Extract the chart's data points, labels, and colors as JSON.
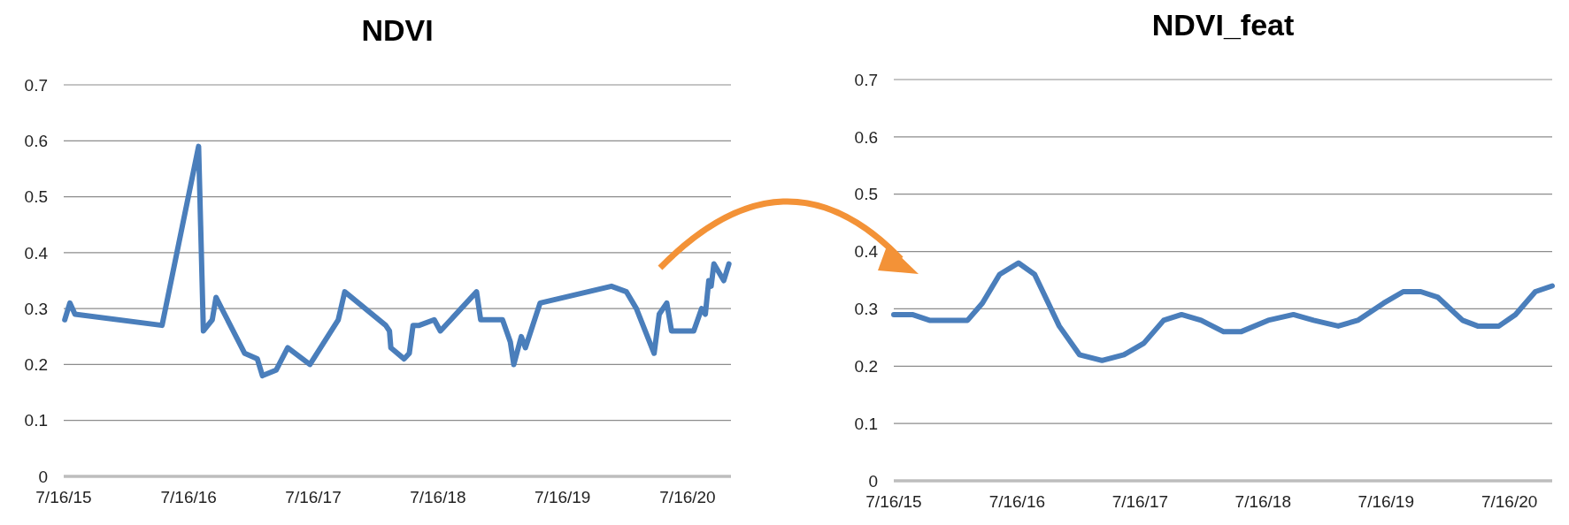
{
  "chart_data": [
    {
      "type": "line",
      "title": "NDVI",
      "grid": "y",
      "marker": "none",
      "line_style": "solid",
      "xlim": [
        "2015-07-16",
        "2020-11-20"
      ],
      "xticks": [
        {
          "value": "2015-07-16",
          "label": "7/16/15"
        },
        {
          "value": "2016-07-16",
          "label": "7/16/16"
        },
        {
          "value": "2017-07-16",
          "label": "7/16/17"
        },
        {
          "value": "2018-07-16",
          "label": "7/16/18"
        },
        {
          "value": "2019-07-16",
          "label": "7/16/19"
        },
        {
          "value": "2020-07-16",
          "label": "7/16/20"
        }
      ],
      "ylim": [
        0,
        0.7
      ],
      "yticks": [
        0,
        0.1,
        0.2,
        0.3,
        0.4,
        0.5,
        0.6,
        0.7
      ],
      "series": [
        {
          "color": "#4a7ebb",
          "x": [
            "2015-07-19",
            "2015-08-03",
            "2015-08-18",
            "2016-04-29",
            "2016-08-14",
            "2016-08-28",
            "2016-09-23",
            "2016-10-04",
            "2016-12-27",
            "2017-02-02",
            "2017-02-17",
            "2017-03-29",
            "2017-05-02",
            "2017-07-06",
            "2017-09-27",
            "2017-10-16",
            "2018-02-13",
            "2018-02-24",
            "2018-02-28",
            "2018-04-08",
            "2018-04-23",
            "2018-05-04",
            "2018-05-22",
            "2018-07-05",
            "2018-07-23",
            "2018-11-06",
            "2018-11-18",
            "2019-01-21",
            "2019-02-13",
            "2019-02-23",
            "2019-03-17",
            "2019-03-29",
            "2019-05-11",
            "2019-12-06",
            "2020-01-19",
            "2020-02-17",
            "2020-04-09",
            "2020-04-24",
            "2020-05-16",
            "2020-05-30",
            "2020-08-03",
            "2020-08-26",
            "2020-09-06",
            "2020-09-16",
            "2020-09-23",
            "2020-10-01",
            "2020-10-30",
            "2020-11-14"
          ],
          "values": [
            0.28,
            0.31,
            0.29,
            0.27,
            0.59,
            0.26,
            0.28,
            0.32,
            0.22,
            0.21,
            0.18,
            0.19,
            0.23,
            0.2,
            0.28,
            0.33,
            0.27,
            0.26,
            0.23,
            0.21,
            0.22,
            0.27,
            0.27,
            0.28,
            0.26,
            0.33,
            0.28,
            0.28,
            0.24,
            0.2,
            0.25,
            0.23,
            0.31,
            0.34,
            0.33,
            0.3,
            0.22,
            0.29,
            0.31,
            0.26,
            0.26,
            0.3,
            0.29,
            0.35,
            0.34,
            0.38,
            0.35,
            0.38
          ]
        }
      ]
    },
    {
      "type": "line",
      "title": "NDVI_feat",
      "grid": "y",
      "marker": "none",
      "line_style": "solid",
      "xlim": [
        "2015-07-16",
        "2020-11-20"
      ],
      "xticks": [
        {
          "value": "2015-07-16",
          "label": "7/16/15"
        },
        {
          "value": "2016-07-16",
          "label": "7/16/16"
        },
        {
          "value": "2017-07-16",
          "label": "7/16/17"
        },
        {
          "value": "2018-07-16",
          "label": "7/16/18"
        },
        {
          "value": "2019-07-16",
          "label": "7/16/19"
        },
        {
          "value": "2020-07-16",
          "label": "7/16/20"
        }
      ],
      "ylim": [
        0,
        0.7
      ],
      "yticks": [
        0,
        0.1,
        0.2,
        0.3,
        0.4,
        0.5,
        0.6,
        0.7
      ],
      "series": [
        {
          "color": "#4a7ebb",
          "x": [
            "2015-07-16",
            "2015-09-09",
            "2015-10-30",
            "2016-01-03",
            "2016-02-20",
            "2016-04-04",
            "2016-05-25",
            "2016-07-20",
            "2016-09-06",
            "2016-11-18",
            "2017-01-17",
            "2017-03-25",
            "2017-05-29",
            "2017-07-27",
            "2017-09-24",
            "2017-11-16",
            "2018-01-13",
            "2018-03-21",
            "2018-05-11",
            "2018-07-31",
            "2018-10-14",
            "2018-12-13",
            "2019-02-24",
            "2019-04-23",
            "2019-07-09",
            "2019-09-05",
            "2019-10-27",
            "2019-12-17",
            "2020-02-28",
            "2020-04-13",
            "2020-06-15",
            "2020-08-03",
            "2020-10-01",
            "2020-11-20"
          ],
          "values": [
            0.29,
            0.29,
            0.28,
            0.28,
            0.28,
            0.31,
            0.36,
            0.38,
            0.36,
            0.27,
            0.22,
            0.21,
            0.22,
            0.24,
            0.28,
            0.29,
            0.28,
            0.26,
            0.26,
            0.28,
            0.29,
            0.28,
            0.27,
            0.28,
            0.31,
            0.33,
            0.33,
            0.32,
            0.28,
            0.27,
            0.27,
            0.29,
            0.33,
            0.34
          ]
        }
      ]
    }
  ]
}
